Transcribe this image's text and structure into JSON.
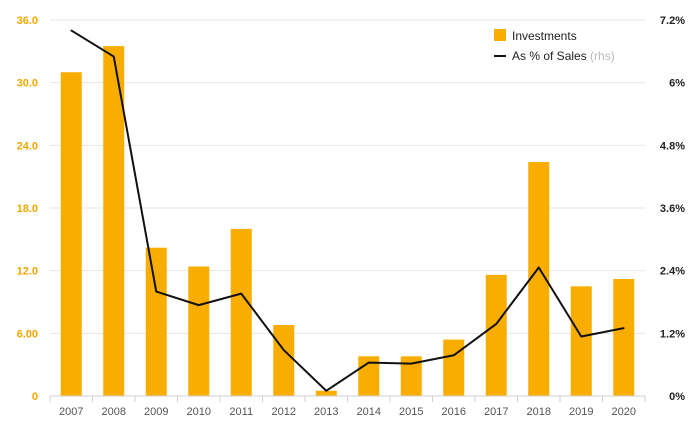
{
  "chart_data": {
    "type": "bar",
    "categories": [
      "2007",
      "2008",
      "2009",
      "2010",
      "2011",
      "2012",
      "2013",
      "2014",
      "2015",
      "2016",
      "2017",
      "2018",
      "2019",
      "2020"
    ],
    "series": [
      {
        "name": "Investments",
        "type": "bar",
        "axis": "left",
        "values": [
          31.0,
          33.5,
          14.2,
          12.4,
          16.0,
          6.8,
          0.5,
          3.8,
          3.8,
          5.4,
          11.6,
          22.4,
          10.5,
          11.2
        ]
      },
      {
        "name": "As % of Sales",
        "type": "line",
        "axis": "right",
        "values": [
          7.0,
          6.5,
          2.0,
          1.74,
          1.96,
          0.88,
          0.1,
          0.64,
          0.62,
          0.78,
          1.38,
          2.46,
          1.14,
          1.3
        ]
      }
    ],
    "ylim": [
      0,
      36
    ],
    "yticks": [
      "0",
      "6.00",
      "12.0",
      "18.0",
      "24.0",
      "30.0",
      "36.0"
    ],
    "y2lim": [
      0,
      7.2
    ],
    "y2ticks": [
      "0%",
      "1.2%",
      "2.4%",
      "3.6%",
      "4.8%",
      "6%",
      "7.2%"
    ],
    "legend": {
      "position": "top-right",
      "items": [
        {
          "label": "Investments",
          "hint": ""
        },
        {
          "label": "As % of Sales",
          "hint": "(rhs)"
        }
      ]
    },
    "grid": true,
    "colors": {
      "bar": "#f9ad00",
      "line": "#111111",
      "grid": "#e6e6e6",
      "left_ticks": "#f0a800",
      "right_ticks": "#222222"
    }
  }
}
